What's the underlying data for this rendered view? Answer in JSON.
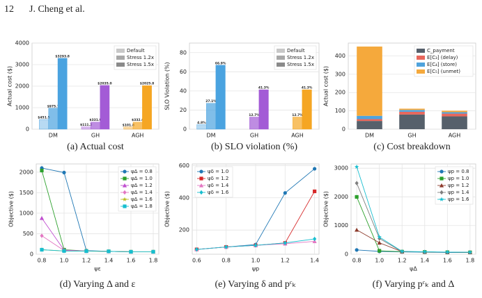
{
  "page_header": {
    "number": "12",
    "authors": "J. Cheng et al."
  },
  "chart_data": [
    {
      "type": "bar",
      "caption": "(a) Actual cost",
      "ylabel": "Actual cost ($)",
      "categories": [
        "DM",
        "GH",
        "AGH"
      ],
      "category_colors": [
        "#4aa3e0",
        "#a35bd6",
        "#f5a623"
      ],
      "series": [
        {
          "name": "Default",
          "color": "#c8c8c8",
          "values": [
            451.5,
            111.2,
            101.8
          ],
          "value_labels": [
            "$451.5",
            "$111.2",
            "$101.8"
          ]
        },
        {
          "name": "Stress 1.2x",
          "color": "#a8a8a8",
          "values": [
            975.7,
            331.9,
            332.6
          ],
          "value_labels": [
            "$975.7",
            "$331.9",
            "$332.6"
          ]
        },
        {
          "name": "Stress 1.5x",
          "color": "#8a8a8a",
          "values": [
            3293.8,
            2035.0,
            2025.8
          ],
          "value_labels": [
            "$3293.8",
            "$2035.0",
            "$2025.8"
          ]
        }
      ],
      "ylim": [
        0,
        4000
      ],
      "yticks": [
        0,
        1000,
        2000,
        3000,
        4000
      ],
      "grid": true,
      "legend": "upper right"
    },
    {
      "type": "bar",
      "caption": "(b) SLO violation (%)",
      "ylabel": "SLO Violation (%)",
      "categories": [
        "DM",
        "GH",
        "AGH"
      ],
      "category_colors": [
        "#4aa3e0",
        "#a35bd6",
        "#f5a623"
      ],
      "series": [
        {
          "name": "Default",
          "color": "#c8c8c8",
          "values": [
            4.8,
            null,
            null
          ],
          "value_labels": [
            "4.8%",
            null,
            null
          ]
        },
        {
          "name": "Stress 1.2x",
          "color": "#a8a8a8",
          "values": [
            27.1,
            12.7,
            12.7
          ],
          "value_labels": [
            "27.1%",
            "12.7%",
            "12.7%"
          ]
        },
        {
          "name": "Stress 1.5x",
          "color": "#8a8a8a",
          "values": [
            66.9,
            41.3,
            41.3
          ],
          "value_labels": [
            "66.9%",
            "41.3%",
            "41.3%"
          ]
        }
      ],
      "ylim": [
        0,
        90
      ],
      "yticks": [
        0,
        20,
        40,
        60,
        80
      ],
      "grid": true,
      "legend": "upper right"
    },
    {
      "type": "stacked_bar",
      "caption": "(c) Cost breakdown",
      "ylabel": "Actual cost ($)",
      "categories": [
        "DM",
        "GH",
        "AGH"
      ],
      "series": [
        {
          "name": "C_payment",
          "color": "#56606b",
          "values": [
            45,
            80,
            70
          ]
        },
        {
          "name": "E[C₃] (delay)",
          "color": "#e8675c",
          "values": [
            10,
            15,
            15
          ]
        },
        {
          "name": "E[C₄] (store)",
          "color": "#4fa3dc",
          "values": [
            18,
            10,
            8
          ]
        },
        {
          "name": "E[C₅] (unmet)",
          "color": "#f5a93c",
          "values": [
            378,
            7,
            8
          ]
        }
      ],
      "ylim": [
        0,
        470
      ],
      "yticks": [
        0,
        100,
        200,
        300,
        400
      ],
      "grid": true,
      "legend": "upper right"
    },
    {
      "type": "line",
      "caption": "(d) Varying Δ and ε",
      "ylabel": "Objective ($)",
      "xlabel": "ψε",
      "x": [
        0.8,
        1,
        1.2,
        1.4,
        1.6,
        1.8
      ],
      "series": [
        {
          "name": "ψΔ = 0.8",
          "color": "#1f77b4",
          "values": [
            2100,
            1990,
            90,
            70,
            60,
            60
          ]
        },
        {
          "name": "ψΔ = 1.0",
          "color": "#2ca02c",
          "values": [
            2040,
            110,
            80,
            70,
            60,
            60
          ]
        },
        {
          "name": "ψΔ = 1.2",
          "color": "#c04fd0",
          "values": [
            880,
            100,
            80,
            70,
            60,
            60
          ]
        },
        {
          "name": "ψΔ = 1.4",
          "color": "#e377c2",
          "values": [
            450,
            90,
            80,
            70,
            60,
            60
          ]
        },
        {
          "name": "ψΔ = 1.6",
          "color": "#bcbd22",
          "values": [
            110,
            80,
            75,
            70,
            60,
            60
          ]
        },
        {
          "name": "ψΔ = 1.8",
          "color": "#17becf",
          "values": [
            110,
            80,
            75,
            70,
            60,
            60
          ]
        }
      ],
      "xlim": [
        0.75,
        1.85
      ],
      "xticks": [
        0.8,
        {
          "value": 1,
          "label": "1.0"
        },
        1.2,
        1.4,
        1.6,
        1.8
      ],
      "ylim": [
        0,
        2200
      ],
      "yticks": [
        0,
        500,
        1000,
        1500,
        2000
      ],
      "grid": true,
      "legend": "upper right"
    },
    {
      "type": "line",
      "caption": "(e) Varying δ and pᶜₖ",
      "ylabel": "Objective ($)",
      "xlabel": "ψp",
      "x": [
        0.6,
        0.8,
        1,
        1.2,
        1.4
      ],
      "series": [
        {
          "name": "ψδ = 1.0",
          "color": "#1f77b4",
          "values": [
            80,
            95,
            110,
            430,
            580
          ]
        },
        {
          "name": "ψδ = 1.2",
          "color": "#d62728",
          "values": [
            80,
            95,
            105,
            120,
            440
          ]
        },
        {
          "name": "ψδ = 1.4",
          "color": "#e377c2",
          "values": [
            80,
            95,
            105,
            115,
            130
          ]
        },
        {
          "name": "ψδ = 1.6",
          "color": "#17becf",
          "values": [
            80,
            95,
            105,
            120,
            145
          ]
        }
      ],
      "xlim": [
        0.57,
        1.43
      ],
      "xticks": [
        0.6,
        0.8,
        {
          "value": 1,
          "label": "1.0"
        },
        1.2,
        1.4
      ],
      "ylim": [
        50,
        610
      ],
      "yticks": [
        200,
        400,
        600
      ],
      "grid": true,
      "legend": "upper left"
    },
    {
      "type": "line",
      "caption": "(f) Varying pᶜₖ and Δ",
      "ylabel": "Objective ($)",
      "xlabel": "ψΔ",
      "x": [
        0.8,
        1,
        1.2,
        1.4,
        1.6,
        1.8
      ],
      "series": [
        {
          "name": "ψp = 0.8",
          "color": "#1f77b4",
          "values": [
            150,
            100,
            80,
            70,
            60,
            60
          ]
        },
        {
          "name": "ψp = 1.0",
          "color": "#2ca02c",
          "values": [
            2000,
            120,
            90,
            80,
            70,
            65
          ]
        },
        {
          "name": "ψp = 1.2",
          "color": "#8c3a2b",
          "values": [
            850,
            400,
            90,
            80,
            70,
            65
          ]
        },
        {
          "name": "ψp = 1.4",
          "color": "#7f7f7f",
          "values": [
            2480,
            550,
            90,
            80,
            70,
            65
          ]
        },
        {
          "name": "ψp = 1.6",
          "color": "#17becf",
          "values": [
            3050,
            600,
            100,
            85,
            75,
            70
          ]
        }
      ],
      "xlim": [
        0.75,
        1.85
      ],
      "xticks": [
        0.8,
        {
          "value": 1,
          "label": "1.0"
        },
        1.2,
        1.4,
        1.6,
        1.8
      ],
      "ylim": [
        0,
        3150
      ],
      "yticks": [
        0,
        1000,
        2000,
        3000
      ],
      "grid": true,
      "legend": "upper right"
    }
  ]
}
